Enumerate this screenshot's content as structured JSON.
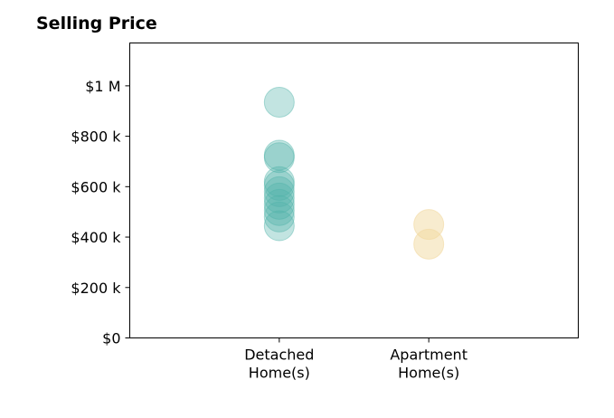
{
  "chart_data": {
    "type": "scatter",
    "title": "Selling Price",
    "xlabel": "",
    "ylabel": "",
    "categories": [
      [
        "Detached",
        "Home(s)"
      ],
      [
        "Apartment",
        "Home(s)"
      ]
    ],
    "xlim": [
      -1,
      2
    ],
    "ylim": [
      0,
      1170000
    ],
    "yticks": [
      0,
      200000,
      400000,
      600000,
      800000,
      1000000
    ],
    "ytick_labels": [
      "$0",
      "$200 k",
      "$400 k",
      "$600 k",
      "$800 k",
      "$1 M"
    ],
    "grid": false,
    "legend": "none",
    "series": [
      {
        "category_index": 0,
        "color": "#4fb3a9",
        "opacity": 0.35,
        "values": [
          935000,
          725000,
          715000,
          620000,
          605000,
          580000,
          555000,
          530000,
          505000,
          480000,
          445000
        ]
      },
      {
        "category_index": 1,
        "color": "#f1d9a0",
        "opacity": 0.5,
        "values": [
          450000,
          372000
        ]
      }
    ]
  }
}
